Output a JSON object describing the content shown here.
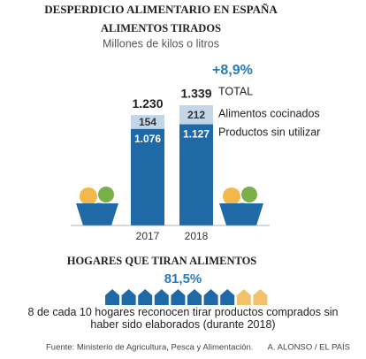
{
  "chart_data": {
    "type": "bar",
    "title": "DESPERDICIO ALIMENTARIO EN ESPAÑA",
    "subtitle": "ALIMENTOS TIRADOS",
    "unit_label": "Millones de kilos o litros",
    "categories": [
      "2017",
      "2018"
    ],
    "stacked": true,
    "series": [
      {
        "name": "Productos sin utilizar",
        "color": "#1f6aa6",
        "values": [
          1076,
          1127
        ],
        "value_labels": [
          "1.076",
          "1.127"
        ]
      },
      {
        "name": "Alimentos cocinados",
        "color": "#c3d6e8",
        "values": [
          154,
          212
        ],
        "value_labels": [
          "154",
          "212"
        ]
      }
    ],
    "totals": {
      "name": "TOTAL",
      "values": [
        1230,
        1339
      ],
      "value_labels": [
        "1.230",
        "1.339"
      ]
    },
    "change_label": "+8,9%",
    "households": {
      "title": "HOGARES QUE TIRAN ALIMENTOS",
      "share": {
        "value": 81.5,
        "label": "81,5%"
      },
      "filled_color": "#1f6aa6",
      "empty_color": "#f3c16a",
      "text": "8 de cada 10 hogares reconocen tirar productos comprados sin haber sido elaborados (durante 2018)"
    },
    "source": "Fuente: Ministerio de Agricultura, Pesca y Alimentación.",
    "credit": "A. ALONSO / EL PAÍS"
  }
}
